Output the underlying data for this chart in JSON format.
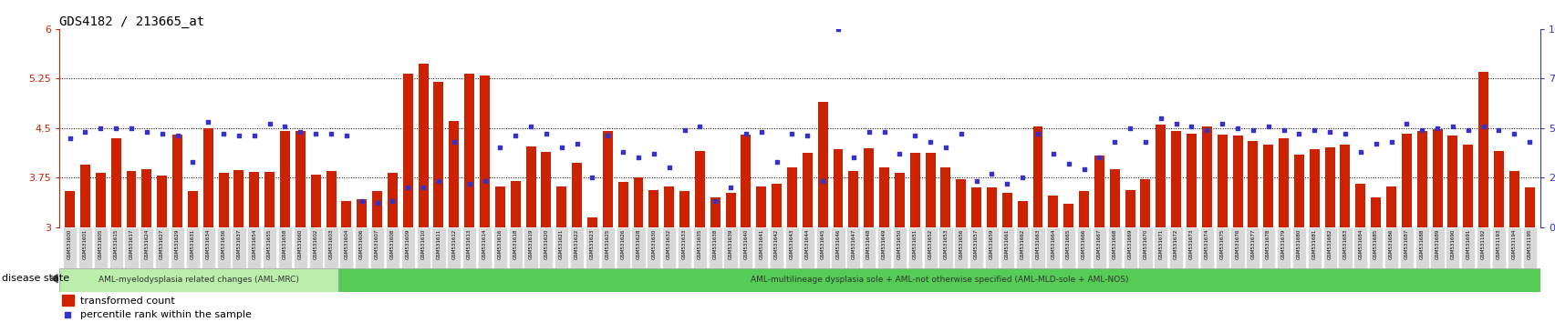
{
  "title": "GDS4182 / 213665_at",
  "samples": [
    "GSM531600",
    "GSM531601",
    "GSM531605",
    "GSM531615",
    "GSM531617",
    "GSM531624",
    "GSM531627",
    "GSM531629",
    "GSM531631",
    "GSM531634",
    "GSM531636",
    "GSM531637",
    "GSM531654",
    "GSM531655",
    "GSM531658",
    "GSM531660",
    "GSM531602",
    "GSM531603",
    "GSM531604",
    "GSM531606",
    "GSM531607",
    "GSM531608",
    "GSM531609",
    "GSM531610",
    "GSM531611",
    "GSM531612",
    "GSM531613",
    "GSM531614",
    "GSM531616",
    "GSM531618",
    "GSM531619",
    "GSM531620",
    "GSM531621",
    "GSM531622",
    "GSM531623",
    "GSM531625",
    "GSM531626",
    "GSM531628",
    "GSM531630",
    "GSM531632",
    "GSM531633",
    "GSM531635",
    "GSM531638",
    "GSM531639",
    "GSM531640",
    "GSM531641",
    "GSM531642",
    "GSM531643",
    "GSM531644",
    "GSM531645",
    "GSM531646",
    "GSM531647",
    "GSM531648",
    "GSM531649",
    "GSM531650",
    "GSM531651",
    "GSM531652",
    "GSM531653",
    "GSM531656",
    "GSM531657",
    "GSM531659",
    "GSM531661",
    "GSM531662",
    "GSM531663",
    "GSM531664",
    "GSM531665",
    "GSM531666",
    "GSM531667",
    "GSM531668",
    "GSM531669",
    "GSM531670",
    "GSM531671",
    "GSM531672",
    "GSM531673",
    "GSM531674",
    "GSM531675",
    "GSM531676",
    "GSM531677",
    "GSM531678",
    "GSM531679",
    "GSM531680",
    "GSM531681",
    "GSM531682",
    "GSM531683",
    "GSM531684",
    "GSM531685",
    "GSM531686",
    "GSM531687",
    "GSM531688",
    "GSM531689",
    "GSM531690",
    "GSM531691",
    "GSM531192",
    "GSM531193",
    "GSM531194",
    "GSM531195"
  ],
  "bar_values": [
    3.55,
    3.95,
    3.82,
    4.35,
    3.85,
    3.87,
    3.78,
    4.4,
    3.54,
    4.5,
    3.82,
    3.86,
    3.84,
    3.84,
    4.45,
    4.46,
    3.79,
    3.85,
    3.4,
    3.42,
    3.55,
    3.82,
    5.32,
    5.48,
    5.2,
    4.6,
    5.32,
    5.3,
    3.62,
    3.7,
    4.22,
    4.14,
    3.62,
    3.97,
    3.15,
    4.45,
    3.68,
    3.75,
    3.56,
    3.62,
    3.55,
    4.15,
    3.45,
    3.52,
    4.4,
    3.62,
    3.65,
    3.9,
    4.12,
    4.9,
    4.18,
    3.85,
    4.19,
    3.9,
    3.82,
    4.12,
    4.12,
    3.9,
    3.72,
    3.6,
    3.6,
    3.52,
    3.4,
    4.52,
    3.48,
    3.35,
    3.55,
    4.08,
    3.88,
    3.56,
    3.72,
    4.55,
    4.45,
    4.42,
    4.52,
    4.4,
    4.38,
    4.3,
    4.25,
    4.35,
    4.1,
    4.18,
    4.2,
    4.25,
    3.65,
    3.45,
    3.62,
    4.42,
    4.45,
    4.48,
    4.38,
    4.25,
    5.35,
    4.15,
    3.85,
    3.6
  ],
  "dot_values_pct": [
    45,
    48,
    50,
    50,
    50,
    48,
    47,
    46,
    33,
    53,
    47,
    46,
    46,
    52,
    51,
    48,
    47,
    47,
    46,
    13,
    12,
    13,
    20,
    20,
    23,
    43,
    22,
    23,
    40,
    46,
    51,
    47,
    40,
    42,
    25,
    46,
    38,
    35,
    37,
    30,
    49,
    51,
    13,
    20,
    47,
    48,
    33,
    47,
    46,
    23,
    100,
    35,
    48,
    48,
    37,
    46,
    43,
    40,
    47,
    23,
    27,
    22,
    25,
    47,
    37,
    32,
    29,
    35,
    43,
    50,
    43,
    55,
    52,
    51,
    49,
    52,
    50,
    49,
    51,
    49,
    47,
    49,
    48,
    47,
    38,
    42,
    43,
    52,
    49,
    50,
    51,
    49,
    51,
    49,
    47,
    43
  ],
  "group1_count": 18,
  "group2_rest_count": 78,
  "group1_label": "AML-myelodysplasia related changes (AML-MRC)",
  "group2_label": "AML-multilineage dysplasia sole + AML-not otherwise specified (AML-MLD-sole + AML-NOS)",
  "bar_color": "#CC2200",
  "dot_color": "#3333CC",
  "y_min": 3.0,
  "y_max": 6.0,
  "y_ticks": [
    3.0,
    3.75,
    4.5,
    5.25,
    6.0
  ],
  "y_right_ticks": [
    0,
    25,
    50,
    75,
    100
  ],
  "gridlines": [
    3.75,
    4.5,
    5.25
  ],
  "tick_bg": "#d8d8d8",
  "group1_bg": "#bbeeaa",
  "group2_bg": "#55cc55",
  "legend_label1": "transformed count",
  "legend_label2": "percentile rank within the sample",
  "disease_state_label": "disease state"
}
